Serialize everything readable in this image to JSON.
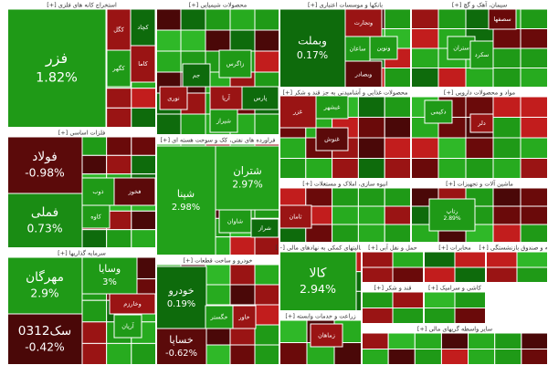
{
  "sectors": [
    {
      "title": "استخراج کانه های فلزی [+]",
      "tiles": [
        {
          "name": "فزر",
          "change": "1.82%"
        },
        {
          "name": "کگل"
        },
        {
          "name": "کچاد"
        },
        {
          "name": "کگهر"
        },
        {
          "name": "کاما"
        }
      ]
    },
    {
      "title": "فلزات اساسی [+]",
      "tiles": [
        {
          "name": "فولاد",
          "change": "-0.98%"
        },
        {
          "name": "فملی",
          "change": "0.73%"
        },
        {
          "name": "ذوب"
        },
        {
          "name": "فخوز"
        },
        {
          "name": "کاوه"
        }
      ]
    },
    {
      "title": "سرمایه گذاریها [+]",
      "tiles": [
        {
          "name": "مهرگان",
          "change": "2.9%"
        },
        {
          "name": "سک0312",
          "change": "-0.42%"
        },
        {
          "name": "وسایا",
          "change": "3%"
        },
        {
          "name": "وخارزم"
        },
        {
          "name": "آریان"
        }
      ]
    },
    {
      "title": "محصولات شیمیایی [+]",
      "tiles": [
        {
          "name": "زاگرس"
        },
        {
          "name": "پارس"
        },
        {
          "name": "شیراز"
        },
        {
          "name": "آریا"
        },
        {
          "name": "جم"
        },
        {
          "name": "نوری"
        }
      ]
    },
    {
      "title": "فراورده های نفتی، کک و سوخت هسته ای [+]",
      "tiles": [
        {
          "name": "شپنا",
          "change": "2.98%"
        },
        {
          "name": "شتران",
          "change": "2.97%"
        },
        {
          "name": "شاوان"
        },
        {
          "name": "شراز"
        }
      ]
    },
    {
      "title": "خودرو و ساخت قطعات [+]",
      "tiles": [
        {
          "name": "خودرو",
          "change": "0.19%"
        },
        {
          "name": "خساپا",
          "change": "-0.62%"
        },
        {
          "name": "خگستر"
        },
        {
          "name": "خاور"
        }
      ]
    },
    {
      "title": "بانکها و موسسات اعتباری [+]",
      "tiles": [
        {
          "name": "وبملت",
          "change": "0.17%"
        },
        {
          "name": "وتجارت"
        },
        {
          "name": "ساعان"
        },
        {
          "name": "ونوین"
        },
        {
          "name": "وبصادر"
        }
      ]
    },
    {
      "title": "محصولات غذایی و آشامیدنی به جز قند و شکر [+]",
      "tiles": [
        {
          "name": "غزر"
        },
        {
          "name": "غبشهر"
        },
        {
          "name": "غنوش"
        }
      ]
    },
    {
      "title": "انبوه سازی، املاک و مستغلات [+]",
      "tiles": [
        {
          "name": "ثامان"
        }
      ]
    },
    {
      "title": "فعالیتهای کمکی به نهادهای مالی [+]",
      "tiles": [
        {
          "name": "کالا",
          "change": "2.94%"
        }
      ]
    },
    {
      "title": "زراعت و خدمات وابسته [+]",
      "tiles": [
        {
          "name": "زماهان"
        }
      ]
    },
    {
      "title": "سیمان، آهک و گچ [+]",
      "tiles": [
        {
          "name": "سصفها"
        },
        {
          "name": "ستران"
        },
        {
          "name": "سکرد"
        }
      ]
    },
    {
      "title": "مواد و محصولات دارویی [+]",
      "tiles": [
        {
          "name": "دکیمی"
        },
        {
          "name": "دلر"
        }
      ]
    },
    {
      "title": "ماشین آلات و تجهیزات [+]",
      "tiles": [
        {
          "name": "رتاپ",
          "change": "2.89%"
        }
      ]
    },
    {
      "title": "حمل و نقل آبی [+]",
      "tiles": []
    },
    {
      "title": "مخابرات [+]",
      "tiles": []
    },
    {
      "title": "بیمه و صندوق بازنشستگی [+]",
      "tiles": []
    },
    {
      "title": "قند و شکر [+]",
      "tiles": []
    },
    {
      "title": "کاشی و سرامیک [+]",
      "tiles": []
    },
    {
      "title": "سایر واسطه گریهای مالی [+]",
      "tiles": []
    }
  ]
}
